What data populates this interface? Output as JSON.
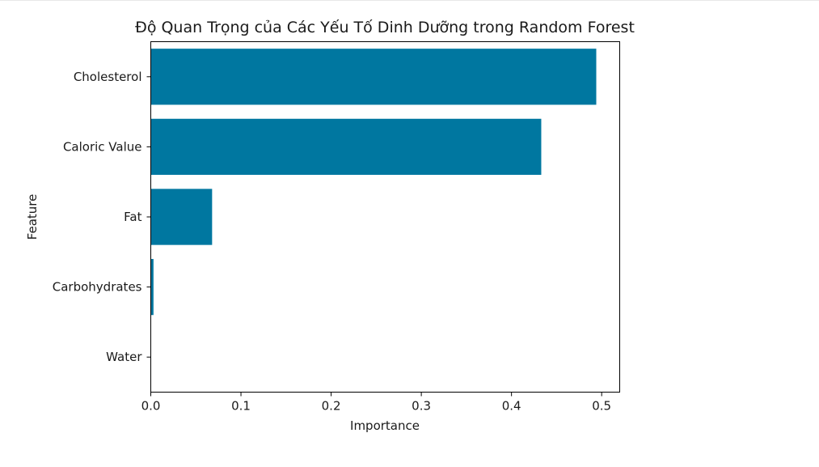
{
  "chart_data": {
    "type": "bar",
    "orientation": "horizontal",
    "title": "Độ Quan Trọng của Các Yếu Tố Dinh Dưỡng trong Random Forest",
    "xlabel": "Importance",
    "ylabel": "Feature",
    "categories": [
      "Cholesterol",
      "Caloric Value",
      "Fat",
      "Carbohydrates",
      "Water"
    ],
    "values": [
      0.494,
      0.433,
      0.068,
      0.003,
      0.0
    ],
    "xlim": [
      0,
      0.52
    ],
    "xticks": [
      "0.0",
      "0.1",
      "0.2",
      "0.3",
      "0.4",
      "0.5"
    ],
    "bar_color": "#0077a0",
    "grid": false
  }
}
